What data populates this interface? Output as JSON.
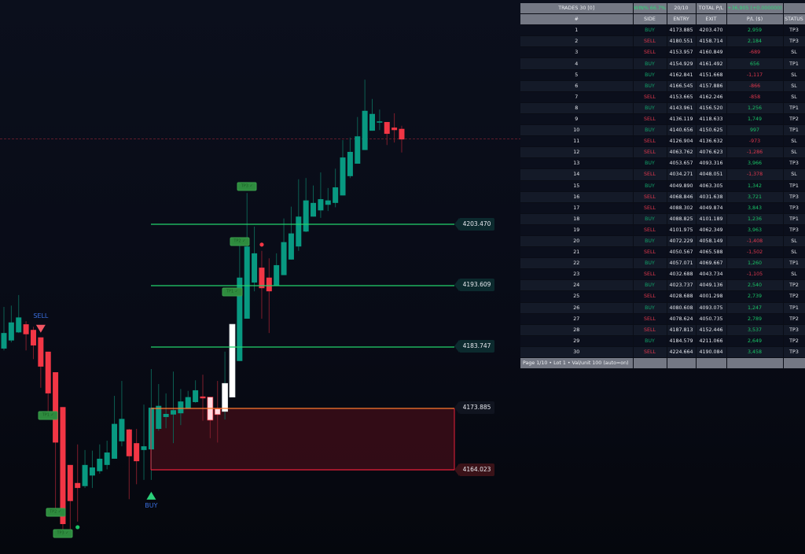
{
  "table": {
    "header": {
      "trades": "TRADES 30 [0]",
      "win": "WIN% 66.7%",
      "ratio": "20/10",
      "total_label": "TOTAL P/L",
      "total_value": "+36,905 (+0.000000)"
    },
    "columns": [
      "#",
      "SIDE",
      "ENTRY",
      "EXIT",
      "P/L ($)",
      "STATUS"
    ],
    "rows": [
      [
        "1",
        "BUY",
        "4173.885",
        "4203.470",
        "2,959",
        "TP3"
      ],
      [
        "2",
        "SELL",
        "4180.551",
        "4158.714",
        "2,184",
        "TP3"
      ],
      [
        "3",
        "SELL",
        "4153.957",
        "4160.849",
        "-689",
        "SL"
      ],
      [
        "4",
        "BUY",
        "4154.929",
        "4161.492",
        "656",
        "TP1"
      ],
      [
        "5",
        "BUY",
        "4162.841",
        "4151.668",
        "-1,117",
        "SL"
      ],
      [
        "6",
        "BUY",
        "4166.545",
        "4157.886",
        "-866",
        "SL"
      ],
      [
        "7",
        "SELL",
        "4153.665",
        "4162.246",
        "-858",
        "SL"
      ],
      [
        "8",
        "BUY",
        "4143.961",
        "4156.520",
        "1,256",
        "TP1"
      ],
      [
        "9",
        "SELL",
        "4136.119",
        "4118.633",
        "1,749",
        "TP2"
      ],
      [
        "10",
        "BUY",
        "4140.656",
        "4150.625",
        "997",
        "TP1"
      ],
      [
        "11",
        "SELL",
        "4126.904",
        "4136.632",
        "-973",
        "SL"
      ],
      [
        "12",
        "SELL",
        "4063.762",
        "4076.623",
        "-1,286",
        "SL"
      ],
      [
        "13",
        "BUY",
        "4053.657",
        "4093.316",
        "3,966",
        "TP3"
      ],
      [
        "14",
        "SELL",
        "4034.271",
        "4048.051",
        "-1,378",
        "SL"
      ],
      [
        "15",
        "BUY",
        "4049.890",
        "4063.305",
        "1,342",
        "TP1"
      ],
      [
        "16",
        "SELL",
        "4068.846",
        "4031.638",
        "3,721",
        "TP3"
      ],
      [
        "17",
        "SELL",
        "4088.302",
        "4049.874",
        "3,843",
        "TP3"
      ],
      [
        "18",
        "BUY",
        "4088.825",
        "4101.189",
        "1,236",
        "TP1"
      ],
      [
        "19",
        "SELL",
        "4101.975",
        "4062.349",
        "3,963",
        "TP3"
      ],
      [
        "20",
        "BUY",
        "4072.229",
        "4058.149",
        "-1,408",
        "SL"
      ],
      [
        "21",
        "SELL",
        "4050.567",
        "4065.588",
        "-1,502",
        "SL"
      ],
      [
        "22",
        "BUY",
        "4057.071",
        "4069.667",
        "1,260",
        "TP1"
      ],
      [
        "23",
        "SELL",
        "4032.688",
        "4043.734",
        "-1,105",
        "SL"
      ],
      [
        "24",
        "BUY",
        "4023.737",
        "4049.136",
        "2,540",
        "TP2"
      ],
      [
        "25",
        "SELL",
        "4028.688",
        "4001.298",
        "2,739",
        "TP2"
      ],
      [
        "26",
        "BUY",
        "4080.608",
        "4093.075",
        "1,247",
        "TP1"
      ],
      [
        "27",
        "SELL",
        "4078.624",
        "4050.735",
        "2,789",
        "TP2"
      ],
      [
        "28",
        "SELL",
        "4187.813",
        "4152.446",
        "3,537",
        "TP3"
      ],
      [
        "29",
        "BUY",
        "4184.579",
        "4211.066",
        "2,649",
        "TP2"
      ],
      [
        "30",
        "SELL",
        "4224.664",
        "4190.084",
        "3,458",
        "TP3"
      ]
    ],
    "footer": "Page 1/10 • Lot 1 • Val/unit 100 (auto=on)"
  },
  "levels": {
    "tp3": "4203.470",
    "tp2": "4193.609",
    "tp1": "4183.747",
    "entry": "4173.885",
    "sl": "4164.023",
    "current_price": 4217.2
  },
  "colors": {
    "bull": "#089981",
    "bear": "#f23645",
    "tp_line": "#22d36b",
    "entry_line": "#ff7a2f",
    "sl_line": "#e8203a",
    "zone": "#3a0d18"
  },
  "signals": [
    {
      "label": "SELL",
      "candle": 6,
      "type": "sell-arrow"
    },
    {
      "label": "BUY",
      "candle": 21,
      "type": "buy-arrow"
    }
  ],
  "tp_tags": [
    {
      "label": "TP1 ✓",
      "candle": 7,
      "price": 4172.7
    },
    {
      "label": "TP2 ✓",
      "candle": 8,
      "price": 4157.2
    },
    {
      "label": "TP3 ✓",
      "candle": 9,
      "price": 4153.8
    },
    {
      "label": "TP1 ✓",
      "candle": 32,
      "price": 4192.6
    },
    {
      "label": "TP2 ✓",
      "candle": 33,
      "price": 4200.7
    },
    {
      "label": "TP3 ✓",
      "candle": 34,
      "price": 4209.5
    }
  ],
  "dots": [
    {
      "candle": 11,
      "price": 4154.8,
      "color": "#19c466"
    },
    {
      "candle": 36,
      "price": 4200.2,
      "color": "#f23645"
    }
  ],
  "candles": [
    [
      4183.5,
      4190.2,
      4183.2,
      4186.0
    ],
    [
      4184.8,
      4190.4,
      4184.5,
      4187.7
    ],
    [
      4186.1,
      4192.1,
      4186.0,
      4188.5
    ],
    [
      4187.4,
      4187.9,
      4183.2,
      4185.8
    ],
    [
      4186.5,
      4187.0,
      4181.8,
      4184.0
    ],
    [
      4185.3,
      4185.3,
      4177.2,
      4180.6
    ],
    [
      4183.0,
      4183.0,
      4172.5,
      4176.3
    ],
    [
      4179.7,
      4179.7,
      4157.3,
      4168.4
    ],
    [
      4174.1,
      4174.1,
      4153.5,
      4155.3
    ],
    [
      4164.8,
      4164.8,
      4153.3,
      4159.0
    ],
    [
      4161.9,
      4168.1,
      4155.7,
      4161.1
    ],
    [
      4161.4,
      4167.2,
      4161.1,
      4164.8
    ],
    [
      4163.1,
      4167.1,
      4161.1,
      4164.4
    ],
    [
      4163.8,
      4168.1,
      4163.4,
      4165.8
    ],
    [
      4164.8,
      4168.7,
      4164.1,
      4166.8
    ],
    [
      4165.8,
      4175.9,
      4165.8,
      4171.4
    ],
    [
      4168.6,
      4178.3,
      4167.8,
      4172.2
    ],
    [
      4170.5,
      4170.6,
      4159.3,
      4166.2
    ],
    [
      4168.3,
      4170.6,
      4161.7,
      4165.4
    ],
    [
      4167.2,
      4174.5,
      4162.4,
      4167.8
    ],
    [
      4167.3,
      4180.2,
      4162.4,
      4174.0
    ],
    [
      4170.6,
      4177.8,
      4170.3,
      4174.3
    ],
    [
      4172.5,
      4176.3,
      4170.7,
      4173.0
    ],
    [
      4172.9,
      4179.8,
      4168.3,
      4173.6
    ],
    [
      4173.1,
      4177.0,
      4171.2,
      4175.0
    ],
    [
      4173.9,
      4176.7,
      4173.8,
      4175.7
    ],
    [
      4174.9,
      4178.4,
      4174.8,
      4176.8
    ],
    [
      4175.8,
      4179.3,
      4171.9,
      4175.5
    ],
    [
      4175.7,
      4175.7,
      4169.1,
      4172.0
    ],
    [
      4173.8,
      4178.3,
      4168.4,
      4172.9
    ],
    [
      4173.4,
      4183.0,
      4172.1,
      4177.9
    ],
    [
      4175.7,
      4187.4,
      4175.7,
      4187.4
    ],
    [
      4181.5,
      4200.1,
      4181.5,
      4194.9
    ],
    [
      4188.3,
      4208.5,
      4188.3,
      4199.9
    ],
    [
      4194.1,
      4203.1,
      4192.7,
      4198.8
    ],
    [
      4196.5,
      4199.2,
      4188.3,
      4193.2
    ],
    [
      4194.9,
      4198.0,
      4186.0,
      4192.7
    ],
    [
      4193.6,
      4198.8,
      4193.6,
      4196.9
    ],
    [
      4195.3,
      4204.4,
      4195.3,
      4200.6
    ],
    [
      4197.8,
      4206.3,
      4197.8,
      4202.0
    ],
    [
      4199.9,
      4210.7,
      4199.2,
      4204.7
    ],
    [
      4202.3,
      4210.9,
      4202.2,
      4207.3
    ],
    [
      4204.7,
      4209.7,
      4204.7,
      4206.9
    ],
    [
      4205.7,
      4211.8,
      4204.5,
      4207.5
    ],
    [
      4206.6,
      4209.3,
      4205.6,
      4207.3
    ],
    [
      4206.9,
      4212.4,
      4206.2,
      4209.4
    ],
    [
      4208.1,
      4217.0,
      4208.1,
      4214.2
    ],
    [
      4211.2,
      4217.4,
      4210.9,
      4215.1
    ],
    [
      4213.2,
      4220.7,
      4213.2,
      4217.6
    ],
    [
      4215.4,
      4226.7,
      4215.4,
      4221.7
    ],
    [
      4218.5,
      4223.6,
      4218.5,
      4221.2
    ],
    [
      4219.8,
      4221.9,
      4218.6,
      4220.0
    ],
    [
      4219.9,
      4219.9,
      4216.2,
      4218.0
    ],
    [
      4219.0,
      4221.3,
      4216.6,
      4218.6
    ],
    [
      4218.8,
      4219.3,
      4215.0,
      4217.1
    ]
  ],
  "highlighted_candles": [
    29,
    30,
    31,
    32
  ]
}
